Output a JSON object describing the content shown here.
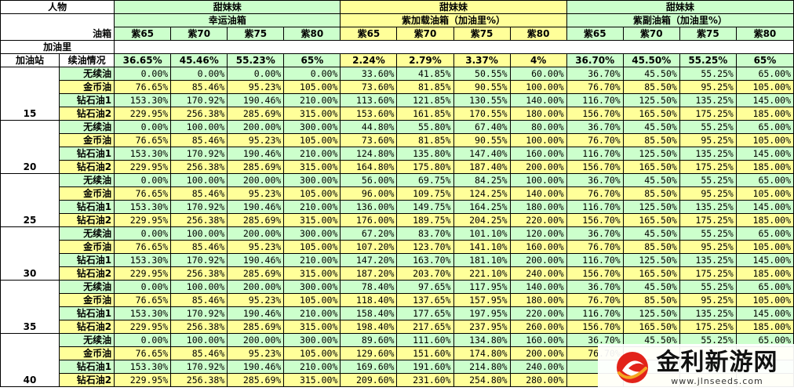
{
  "header": {
    "corner_person": "人物",
    "corner_tank": "油箱",
    "corner_amount": "加油里",
    "corner_station": "加油站",
    "corner_condition": "续油情况",
    "groups": [
      {
        "character": "甜妹妹",
        "tank": "幸运油箱",
        "cars": [
          "紫65",
          "紫70",
          "紫75",
          "紫80"
        ],
        "base": [
          "36.65%",
          "45.46%",
          "55.23%",
          "65%"
        ]
      },
      {
        "character": "甜妹妹",
        "tank": "紫加载油箱（加油里%）",
        "cars": [
          "紫65",
          "紫70",
          "紫75",
          "紫80"
        ],
        "base": [
          "2.24%",
          "2.79%",
          "3.37%",
          "4%"
        ]
      },
      {
        "character": "甜妹妹",
        "tank": "紫副油箱（加油里%）",
        "cars": [
          "紫65",
          "紫70",
          "紫75",
          "紫80"
        ],
        "base": [
          "36.70%",
          "45.50%",
          "55.25%",
          "65%"
        ]
      }
    ]
  },
  "blocks": [
    {
      "station": "15",
      "rows": [
        {
          "label": "无续油",
          "values": [
            "0.00%",
            "0.00%",
            "0.00%",
            "0.00%",
            "33.60%",
            "41.85%",
            "50.55%",
            "60.00%",
            "36.70%",
            "45.50%",
            "55.25%",
            "65.00%"
          ]
        },
        {
          "label": "金币油",
          "values": [
            "76.65%",
            "85.46%",
            "95.23%",
            "105.00%",
            "73.60%",
            "81.85%",
            "90.55%",
            "100.00%",
            "76.70%",
            "85.50%",
            "95.25%",
            "105.00%"
          ]
        },
        {
          "label": "钻石油1",
          "values": [
            "153.30%",
            "170.92%",
            "190.46%",
            "210.00%",
            "113.60%",
            "121.85%",
            "130.55%",
            "140.00%",
            "116.70%",
            "125.50%",
            "135.25%",
            "145.00%"
          ]
        },
        {
          "label": "钻石油2",
          "values": [
            "229.95%",
            "256.38%",
            "285.69%",
            "315.00%",
            "153.60%",
            "161.85%",
            "170.55%",
            "180.00%",
            "156.70%",
            "165.50%",
            "175.25%",
            "185.00%"
          ]
        }
      ]
    },
    {
      "station": "20",
      "rows": [
        {
          "label": "无续油",
          "values": [
            "0.00%",
            "100.00%",
            "200.00%",
            "300.00%",
            "44.80%",
            "55.80%",
            "67.40%",
            "80.00%",
            "36.70%",
            "45.50%",
            "55.25%",
            "65.00%"
          ]
        },
        {
          "label": "金币油",
          "values": [
            "76.65%",
            "85.46%",
            "95.23%",
            "105.00%",
            "73.60%",
            "81.85%",
            "90.55%",
            "100.00%",
            "76.70%",
            "85.50%",
            "95.25%",
            "105.00%"
          ]
        },
        {
          "label": "钻石油1",
          "values": [
            "153.30%",
            "170.92%",
            "190.46%",
            "210.00%",
            "124.80%",
            "135.80%",
            "147.40%",
            "160.00%",
            "116.70%",
            "125.50%",
            "135.25%",
            "145.00%"
          ]
        },
        {
          "label": "钻石油2",
          "values": [
            "229.95%",
            "256.38%",
            "285.69%",
            "315.00%",
            "164.80%",
            "175.80%",
            "187.40%",
            "200.00%",
            "156.70%",
            "165.50%",
            "175.25%",
            "185.00%"
          ]
        }
      ]
    },
    {
      "station": "25",
      "rows": [
        {
          "label": "无续油",
          "values": [
            "0.00%",
            "100.00%",
            "200.00%",
            "300.00%",
            "56.00%",
            "69.75%",
            "84.25%",
            "100.00%",
            "36.70%",
            "45.50%",
            "55.25%",
            "65.00%"
          ]
        },
        {
          "label": "金币油",
          "values": [
            "76.65%",
            "85.46%",
            "95.23%",
            "105.00%",
            "96.00%",
            "109.75%",
            "124.25%",
            "140.00%",
            "76.70%",
            "85.50%",
            "95.25%",
            "105.00%"
          ]
        },
        {
          "label": "钻石油1",
          "values": [
            "153.30%",
            "170.92%",
            "190.46%",
            "210.00%",
            "136.00%",
            "149.75%",
            "164.25%",
            "180.00%",
            "116.70%",
            "125.50%",
            "135.25%",
            "145.00%"
          ]
        },
        {
          "label": "钻石油2",
          "values": [
            "229.95%",
            "256.38%",
            "285.69%",
            "315.00%",
            "176.00%",
            "189.75%",
            "204.25%",
            "220.00%",
            "156.70%",
            "165.50%",
            "175.25%",
            "185.00%"
          ]
        }
      ]
    },
    {
      "station": "30",
      "rows": [
        {
          "label": "无续油",
          "values": [
            "0.00%",
            "100.00%",
            "200.00%",
            "300.00%",
            "67.20%",
            "83.70%",
            "101.10%",
            "120.00%",
            "36.70%",
            "45.50%",
            "55.25%",
            "65.00%"
          ]
        },
        {
          "label": "金币油",
          "values": [
            "76.65%",
            "85.46%",
            "95.23%",
            "105.00%",
            "107.20%",
            "123.70%",
            "141.10%",
            "160.00%",
            "76.70%",
            "85.50%",
            "95.25%",
            "105.00%"
          ]
        },
        {
          "label": "钻石油1",
          "values": [
            "153.30%",
            "170.92%",
            "190.46%",
            "210.00%",
            "147.20%",
            "163.70%",
            "181.10%",
            "200.00%",
            "116.70%",
            "125.50%",
            "135.25%",
            "145.00%"
          ]
        },
        {
          "label": "钻石油2",
          "values": [
            "229.95%",
            "256.38%",
            "285.69%",
            "315.00%",
            "187.20%",
            "203.70%",
            "221.10%",
            "240.00%",
            "156.70%",
            "165.50%",
            "175.25%",
            "185.00%"
          ]
        }
      ]
    },
    {
      "station": "35",
      "rows": [
        {
          "label": "无续油",
          "values": [
            "0.00%",
            "100.00%",
            "200.00%",
            "300.00%",
            "78.40%",
            "97.65%",
            "117.95%",
            "140.00%",
            "36.70%",
            "45.50%",
            "55.25%",
            "65.00%"
          ]
        },
        {
          "label": "金币油",
          "values": [
            "76.65%",
            "85.46%",
            "95.23%",
            "105.00%",
            "118.40%",
            "137.65%",
            "157.95%",
            "180.00%",
            "76.70%",
            "85.50%",
            "95.25%",
            "105.00%"
          ]
        },
        {
          "label": "钻石油1",
          "values": [
            "153.30%",
            "170.92%",
            "190.46%",
            "210.00%",
            "158.40%",
            "177.65%",
            "197.95%",
            "220.00%",
            "116.70%",
            "125.50%",
            "135.25%",
            "145.00%"
          ]
        },
        {
          "label": "钻石油2",
          "values": [
            "229.95%",
            "256.38%",
            "285.69%",
            "315.00%",
            "198.40%",
            "217.65%",
            "237.95%",
            "260.00%",
            "156.70%",
            "165.50%",
            "175.25%",
            "185.00%"
          ]
        }
      ]
    },
    {
      "station": "40",
      "rows": [
        {
          "label": "无续油",
          "values": [
            "0.00%",
            "100.00%",
            "200.00%",
            "300.00%",
            "89.60%",
            "111.60%",
            "134.80%",
            "160.00%",
            "36.70%",
            "45.50%",
            "55.25%",
            "65.00%"
          ]
        },
        {
          "label": "金币油",
          "values": [
            "76.65%",
            "85.46%",
            "95.23%",
            "105.00%",
            "129.60%",
            "151.60%",
            "174.80%",
            "200.00%",
            "76.70%",
            "",
            "",
            ""
          ]
        },
        {
          "label": "钻石油1",
          "values": [
            "153.30%",
            "170.92%",
            "190.46%",
            "210.00%",
            "169.60%",
            "191.60%",
            "214.80%",
            "240.00%",
            "",
            "",
            "",
            ""
          ]
        },
        {
          "label": "钻石油2",
          "values": [
            "229.95%",
            "256.38%",
            "285.69%",
            "315.00%",
            "209.60%",
            "231.60%",
            "254.80%",
            "280.00%",
            "",
            "",
            "",
            ""
          ]
        }
      ]
    }
  ],
  "watermark": {
    "title": "金利新游网",
    "url": "www.jlnseeds.com"
  }
}
